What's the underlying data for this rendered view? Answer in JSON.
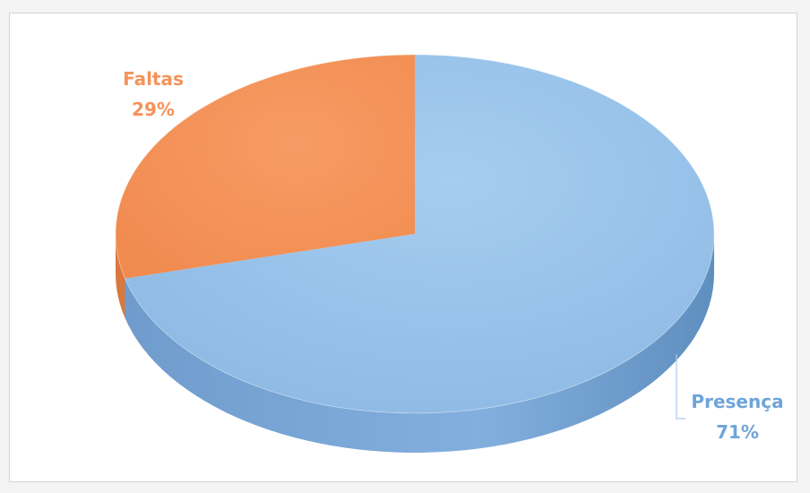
{
  "chart_data": {
    "type": "pie",
    "style": "3d",
    "title": "",
    "slices": [
      {
        "label": "Faltas",
        "value": 29,
        "percent_label": "29%",
        "color": "#f4935a",
        "label_color": "#f4935a"
      },
      {
        "label": "Presença",
        "value": 71,
        "percent_label": "71%",
        "color": "#92bde6",
        "label_color": "#6fa4d8"
      }
    ],
    "legend": "none",
    "data_labels": "outside"
  }
}
